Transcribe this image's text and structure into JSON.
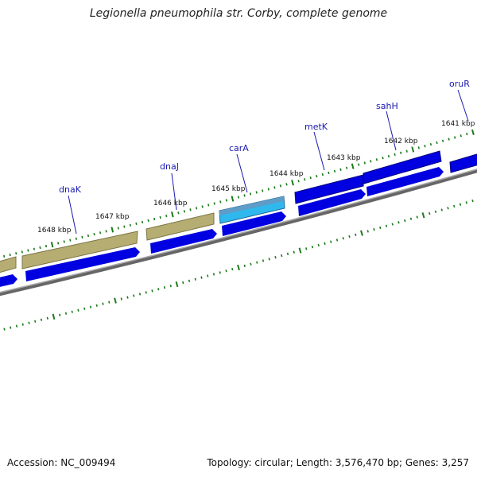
{
  "title": "Legionella pneumophila str. Corby, complete genome",
  "footer": {
    "accession": "Accession: NC_009494",
    "stats": "Topology: circular; Length: 3,576,470 bp; Genes: 3,257"
  },
  "colors": {
    "gene_forward": "#0000e0",
    "gene_other": "#b5ad72",
    "gene_highlight": "#2fb8ee",
    "backbone": "#888888",
    "ticks": "#1a7a1a",
    "gene_label": "#1a1ab0"
  },
  "scale_labels": [
    "1648 kbp",
    "1647 kbp",
    "1646 kbp",
    "1645 kbp",
    "1644 kbp",
    "1643 kbp",
    "1642 kbp",
    "1641 kbp"
  ],
  "genes": [
    {
      "name": "dnaK"
    },
    {
      "name": "dnaJ"
    },
    {
      "name": "carA"
    },
    {
      "name": "metK"
    },
    {
      "name": "sahH"
    },
    {
      "name": "oruR"
    }
  ]
}
